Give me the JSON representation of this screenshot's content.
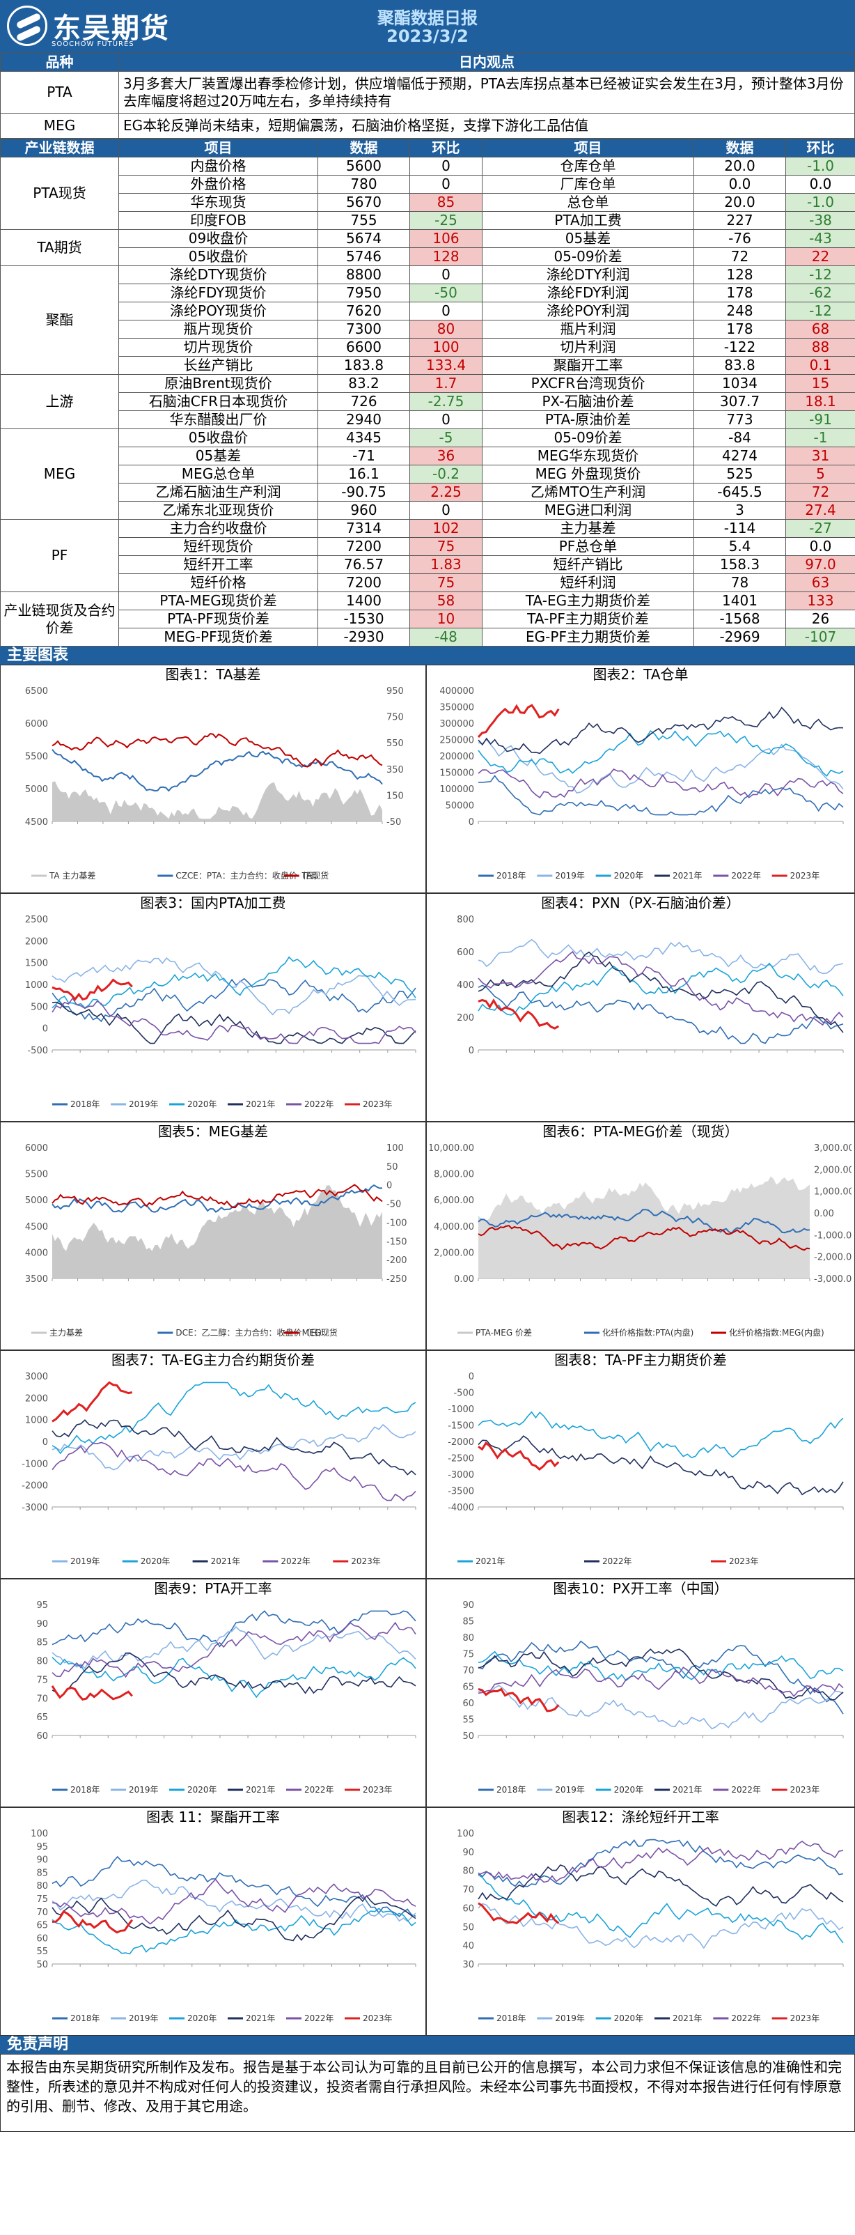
{
  "header": {
    "brand": "东吴期货",
    "brand_sub": "SOOCHOW FUTURES",
    "title": "聚酯数据日报",
    "date": "2023/3/2"
  },
  "view": {
    "col1": "品种",
    "col2": "日内观点",
    "rows": [
      {
        "cat": "PTA",
        "text": "3月多套大厂装置爆出春季检修计划，供应增幅低于预期，PTA去库拐点基本已经被证实会发生在3月，预计整体3月份去库幅度将超过20万吨左右，多单持续持有"
      },
      {
        "cat": "MEG",
        "text": "EG本轮反弹尚未结束，短期偏震荡，石脑油价格坚挺，支撑下游化工品估值"
      }
    ]
  },
  "table": {
    "headers": [
      "产业链数据",
      "项目",
      "数据",
      "环比",
      "项目",
      "数据",
      "环比"
    ],
    "groups": [
      {
        "cat": "PTA现货",
        "rows": [
          [
            "内盘价格",
            "5600",
            "0",
            "",
            "仓库仓单",
            "20.0",
            "-1.0",
            "g"
          ],
          [
            "外盘价格",
            "780",
            "0",
            "",
            "厂库仓单",
            "0.0",
            "0.0",
            ""
          ],
          [
            "华东现货",
            "5670",
            "85",
            "r",
            "总仓单",
            "20.0",
            "-1.0",
            "g"
          ],
          [
            "印度FOB",
            "755",
            "-25",
            "g",
            "PTA加工费",
            "227",
            "-38",
            "g"
          ]
        ]
      },
      {
        "cat": "TA期货",
        "rows": [
          [
            "09收盘价",
            "5674",
            "106",
            "r",
            "05基差",
            "-76",
            "-43",
            "g"
          ],
          [
            "05收盘价",
            "5746",
            "128",
            "r",
            "05-09价差",
            "72",
            "22",
            "r"
          ]
        ]
      },
      {
        "cat": "聚酯",
        "rows": [
          [
            "涤纶DTY现货价",
            "8800",
            "0",
            "",
            "涤纶DTY利润",
            "128",
            "-12",
            "g"
          ],
          [
            "涤纶FDY现货价",
            "7950",
            "-50",
            "g",
            "涤纶FDY利润",
            "178",
            "-62",
            "g"
          ],
          [
            "涤纶POY现货价",
            "7620",
            "0",
            "",
            "涤纶POY利润",
            "248",
            "-12",
            "g"
          ],
          [
            "瓶片现货价",
            "7300",
            "80",
            "r",
            "瓶片利润",
            "178",
            "68",
            "r"
          ],
          [
            "切片现货价",
            "6600",
            "100",
            "r",
            "切片利润",
            "-122",
            "88",
            "r"
          ],
          [
            "长丝产销比",
            "183.8",
            "133.4",
            "r",
            "聚酯开工率",
            "83.8",
            "0.1",
            "r"
          ]
        ]
      },
      {
        "cat": "上游",
        "rows": [
          [
            "原油Brent现货价",
            "83.2",
            "1.7",
            "r",
            "PXCFR台湾现货价",
            "1034",
            "15",
            "r"
          ],
          [
            "石脑油CFR日本现货价",
            "726",
            "-2.75",
            "g",
            "PX-石脑油价差",
            "307.7",
            "18.1",
            "r"
          ],
          [
            "华东醋酸出厂价",
            "2940",
            "0",
            "",
            "PTA-原油价差",
            "773",
            "-91",
            "g"
          ]
        ]
      },
      {
        "cat": "MEG",
        "rows": [
          [
            "05收盘价",
            "4345",
            "-5",
            "g",
            "05-09价差",
            "-84",
            "-1",
            "g"
          ],
          [
            "05基差",
            "-71",
            "36",
            "r",
            "MEG华东现货价",
            "4274",
            "31",
            "r"
          ],
          [
            "MEG总仓单",
            "16.1",
            "-0.2",
            "g",
            "MEG 外盘现货价",
            "525",
            "5",
            "r"
          ],
          [
            "乙烯石脑油生产利润",
            "-90.75",
            "2.25",
            "r",
            "乙烯MTO生产利润",
            "-645.5",
            "72",
            "r"
          ],
          [
            "乙烯东北亚现货价",
            "960",
            "0",
            "",
            "MEG进口利润",
            "3",
            "27.4",
            "r"
          ]
        ]
      },
      {
        "cat": "PF",
        "rows": [
          [
            "主力合约收盘价",
            "7314",
            "102",
            "r",
            "主力基差",
            "-114",
            "-27",
            "g"
          ],
          [
            "短纤现货价",
            "7200",
            "75",
            "r",
            "PF总仓单",
            "5.4",
            "0.0",
            ""
          ],
          [
            "短纤开工率",
            "76.57",
            "1.83",
            "r",
            "短纤产销比",
            "158.3",
            "97.0",
            "r"
          ],
          [
            "短纤价格",
            "7200",
            "75",
            "r",
            "短纤利润",
            "78",
            "63",
            "r"
          ]
        ]
      },
      {
        "cat": "产业链现货及合约价差",
        "rows": [
          [
            "PTA-MEG现货价差",
            "1400",
            "58",
            "r",
            "TA-EG主力期货价差",
            "1401",
            "133",
            "r"
          ],
          [
            "PTA-PF现货价差",
            "-1530",
            "10",
            "r",
            "TA-PF主力期货价差",
            "-1568",
            "26",
            ""
          ],
          [
            "MEG-PF现货价差",
            "-2930",
            "-48",
            "g",
            "EG-PF主力期货价差",
            "-2969",
            "-107",
            "g"
          ]
        ]
      }
    ]
  },
  "charts_title": "主要图表",
  "charts": [
    {
      "title": "图表1：TA基差",
      "legend": [
        "TA 主力基差",
        "CZCE：PTA：主力合约：收盘价（日）",
        "TA现货"
      ],
      "yl": [
        "6500",
        "6000",
        "5500",
        "5000",
        "4500"
      ],
      "yr": [
        "950",
        "750",
        "550",
        "350",
        "150",
        "-50"
      ],
      "kind": "basis1"
    },
    {
      "title": "图表2：TA仓单",
      "legend": [
        "2018年",
        "2019年",
        "2020年",
        "2021年",
        "2022年",
        "2023年"
      ],
      "yl": [
        "400000",
        "350000",
        "300000",
        "250000",
        "200000",
        "150000",
        "100000",
        "50000",
        "0"
      ],
      "yr": [],
      "kind": "warrant"
    },
    {
      "title": "图表3：国内PTA加工费",
      "legend": [
        "2018年",
        "2019年",
        "2020年",
        "2021年",
        "2022年",
        "2023年"
      ],
      "yl": [
        "2500",
        "2000",
        "1500",
        "1000",
        "500",
        "0",
        "-500"
      ],
      "yr": [],
      "kind": "multi"
    },
    {
      "title": "图表4：PXN（PX-石脑油价差）",
      "legend": [],
      "yl": [
        "800",
        "600",
        "400",
        "200",
        "0"
      ],
      "yr": [],
      "kind": "multi"
    },
    {
      "title": "图表5：MEG基差",
      "legend": [
        "主力基差",
        "DCE：乙二醇：主力合约：收盘价（日）",
        "MEG现货"
      ],
      "yl": [
        "6000",
        "5500",
        "5000",
        "4500",
        "4000",
        "3500"
      ],
      "yr": [
        "100",
        "50",
        "0",
        "-50",
        "-100",
        "-150",
        "-200",
        "-250"
      ],
      "kind": "basis2"
    },
    {
      "title": "图表6：PTA-MEG价差（现货）",
      "legend": [
        "PTA-MEG 价差",
        "化纤价格指数:PTA(内盘)",
        "化纤价格指数:MEG(内盘)"
      ],
      "yl": [
        "10,000.00",
        "8,000.00",
        "6,000.00",
        "4,000.00",
        "2,000.00",
        "0.00"
      ],
      "yr": [
        "3,000.00",
        "2,000.00",
        "1,000.00",
        "0.00",
        "-1,000.00",
        "-2,000.00",
        "-3,000.00"
      ],
      "kind": "spread"
    },
    {
      "title": "图表7：TA-EG主力合约期货价差",
      "legend": [
        "2019年",
        "2020年",
        "2021年",
        "2022年",
        "2023年"
      ],
      "yl": [
        "3000",
        "2000",
        "1000",
        "0",
        "-1000",
        "-2000",
        "-3000"
      ],
      "yr": [],
      "kind": "multi"
    },
    {
      "title": "图表8：TA-PF主力期货价差",
      "legend": [
        "2021年",
        "2022年",
        "2023年"
      ],
      "yl": [
        "0",
        "-500",
        "-1000",
        "-1500",
        "-2000",
        "-2500",
        "-3000",
        "-3500",
        "-4000"
      ],
      "yr": [],
      "kind": "multi"
    },
    {
      "title": "图表9：PTA开工率",
      "legend": [
        "2018年",
        "2019年",
        "2020年",
        "2021年",
        "2022年",
        "2023年"
      ],
      "yl": [
        "95",
        "90",
        "85",
        "80",
        "75",
        "70",
        "65",
        "60"
      ],
      "yr": [],
      "kind": "multi"
    },
    {
      "title": "图表10：PX开工率（中国）",
      "legend": [
        "2018年",
        "2019年",
        "2020年",
        "2021年",
        "2022年",
        "2023年"
      ],
      "yl": [
        "90",
        "85",
        "80",
        "75",
        "70",
        "65",
        "60",
        "55",
        "50"
      ],
      "yr": [],
      "kind": "multi"
    },
    {
      "title": "图表 11：聚酯开工率",
      "legend": [
        "2018年",
        "2019年",
        "2020年",
        "2021年",
        "2022年",
        "2023年"
      ],
      "yl": [
        "100",
        "95",
        "90",
        "85",
        "80",
        "75",
        "70",
        "65",
        "60",
        "55",
        "50"
      ],
      "yr": [],
      "kind": "multi"
    },
    {
      "title": "图表12：涤纶短纤开工率",
      "legend": [
        "2018年",
        "2019年",
        "2020年",
        "2021年",
        "2022年",
        "2023年"
      ],
      "yl": [
        "100",
        "90",
        "80",
        "70",
        "60",
        "50",
        "40",
        "30"
      ],
      "yr": [],
      "kind": "multi"
    }
  ],
  "disclaimer": {
    "title": "免责声明",
    "text": "本报告由东吴期货研究所制作及发布。报告是基于本公司认为可靠的且目前已公开的信息撰写，本公司力求但不保证该信息的准确性和完整性，所表述的意见并不构成对任何人的投资建议，投资者需自行承担风险。未经本公司事先书面授权，不得对本报告进行任何有悖原意的引用、删节、修改、及用于其它用途。"
  },
  "colors": {
    "primary": "#1f5f9e",
    "red": "#c00000",
    "green": "#2e7d32",
    "y2018": "#2f6eb5",
    "y2019": "#8ab4e6",
    "y2020": "#1aa3d9",
    "y2021": "#1f2f5e",
    "y2022": "#7a52a6",
    "y2023": "#e02020"
  }
}
